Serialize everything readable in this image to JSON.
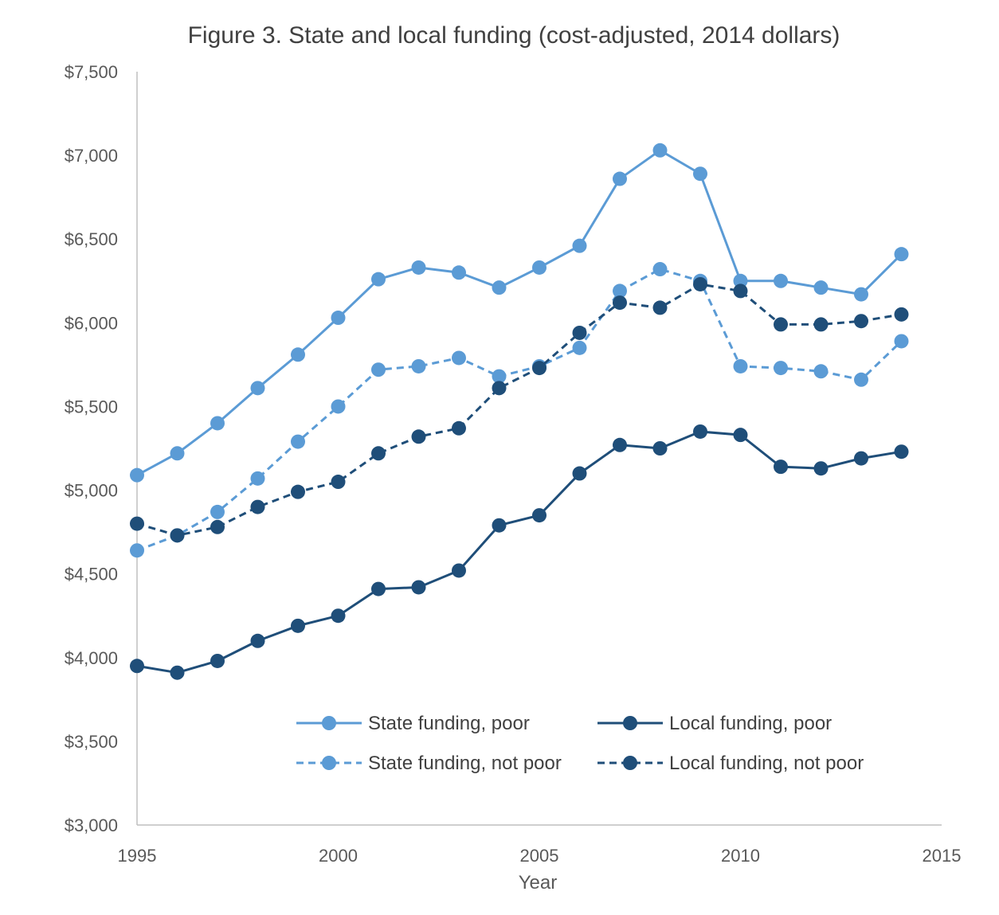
{
  "chart_data": {
    "type": "line",
    "title": "Figure 3. State and local funding (cost-adjusted, 2014 dollars)",
    "xlabel": "Year",
    "ylabel": "",
    "xlim": [
      1995,
      2015
    ],
    "ylim": [
      3000,
      7500
    ],
    "x_ticks": [
      1995,
      2000,
      2005,
      2010,
      2015
    ],
    "x_tick_labels": [
      "1995",
      "2000",
      "2005",
      "2010",
      "2015"
    ],
    "y_ticks": [
      3000,
      3500,
      4000,
      4500,
      5000,
      5500,
      6000,
      6500,
      7000,
      7500
    ],
    "y_tick_labels": [
      "$3,000",
      "$3,500",
      "$4,000",
      "$4,500",
      "$5,000",
      "$5,500",
      "$6,000",
      "$6,500",
      "$7,000",
      "$7,500"
    ],
    "grid": false,
    "legend_position": "bottom-right",
    "x": [
      1995,
      1996,
      1997,
      1998,
      1999,
      2000,
      2001,
      2002,
      2003,
      2004,
      2005,
      2006,
      2007,
      2008,
      2009,
      2010,
      2011,
      2012,
      2013,
      2014
    ],
    "series": [
      {
        "name": "State funding, poor",
        "color": "#5b9bd5",
        "dash": "solid",
        "values": [
          5090,
          5220,
          5400,
          5610,
          5810,
          6030,
          6260,
          6330,
          6300,
          6210,
          6330,
          6460,
          6860,
          7030,
          6890,
          6250,
          6250,
          6210,
          6170,
          6410
        ]
      },
      {
        "name": "Local funding, poor",
        "color": "#1f4e79",
        "dash": "solid",
        "values": [
          3950,
          3910,
          3980,
          4100,
          4190,
          4250,
          4410,
          4420,
          4520,
          4790,
          4850,
          5100,
          5270,
          5250,
          5350,
          5330,
          5140,
          5130,
          5190,
          5230
        ]
      },
      {
        "name": "State funding, not poor",
        "color": "#5b9bd5",
        "dash": "dashed",
        "values": [
          4640,
          4730,
          4870,
          5070,
          5290,
          5500,
          5720,
          5740,
          5790,
          5680,
          5740,
          5850,
          6190,
          6320,
          6250,
          5740,
          5730,
          5710,
          5660,
          5890
        ]
      },
      {
        "name": "Local funding, not poor",
        "color": "#1f4e79",
        "dash": "dashed",
        "values": [
          4800,
          4730,
          4780,
          4900,
          4990,
          5050,
          5220,
          5320,
          5370,
          5610,
          5730,
          5940,
          6120,
          6090,
          6230,
          6190,
          5990,
          5990,
          6010,
          6050
        ]
      }
    ]
  }
}
